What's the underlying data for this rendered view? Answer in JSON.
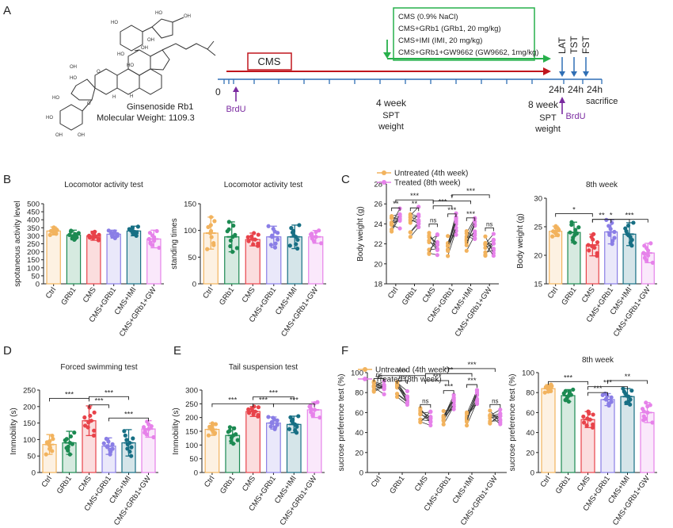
{
  "colors": {
    "Ctrl": "#f2b35e",
    "GRb1": "#1c8a52",
    "CMS": "#e8434a",
    "CMS+GRb1": "#8a7ee6",
    "CMS+IMI": "#176f84",
    "CMS+GRb1+GW": "#e682ea",
    "red_arrow": "#c0161e",
    "green_arrow": "#27b04b",
    "blue_axis": "#2f6fb5",
    "purple": "#7a2aa0"
  },
  "panel_A": {
    "letter": "A",
    "compound_name": "Ginsenoside Rb1",
    "molecular_weight": "Molecular Weight: 1109.3",
    "cms_box_label": "CMS",
    "treatment_lines": [
      "CMS (0.9% NaCl)",
      "CMS+GRb1 (GRb1, 20 mg/kg)",
      "CMS+IMI (IMI, 20 mg/kg)",
      "CMS+GRb1+GW9662 (GW9662, 1mg/kg)"
    ],
    "timeline": {
      "zero": "0",
      "brdu_1": "BrdU",
      "week4": "4 week",
      "spt_1": "SPT",
      "weight_1": "weight",
      "week8": "8 week",
      "spt_2": "SPT",
      "weight_2": "weight",
      "brdu_2": "BrdU",
      "h24_1": "24h",
      "h24_2": "24h",
      "h24_3": "24h",
      "sacrifice": "sacrifice",
      "tests": [
        "LAT",
        "TST",
        "FST"
      ]
    }
  },
  "panel_letters": {
    "B": "B",
    "C": "C",
    "D": "D",
    "E": "E",
    "F": "F"
  },
  "chart_data": [
    {
      "id": "B1",
      "type": "bar",
      "title": "Locomotor activity test",
      "ylabel": "spotaneous activity level",
      "ylim": [
        0,
        500
      ],
      "yticks": [
        "0",
        "50",
        "100",
        "150",
        "200",
        "250",
        "300",
        "350",
        "400",
        "450",
        "500"
      ],
      "categories": [
        "Ctrl",
        "GRb1",
        "CMS",
        "CMS+GRb1",
        "CMS+IMI",
        "CMS+GRb1+GW"
      ],
      "values": [
        330,
        305,
        300,
        310,
        330,
        280
      ],
      "errors": [
        25,
        30,
        28,
        25,
        30,
        55
      ],
      "scatter_offsets": [
        -50,
        -35,
        -20,
        -10,
        0,
        10,
        20,
        35,
        45,
        -25
      ],
      "significance": []
    },
    {
      "id": "B2",
      "type": "bar",
      "title": "Locomotor activity test",
      "ylabel": "standing times",
      "ylim": [
        0,
        150
      ],
      "yticks": [
        "0",
        "50",
        "100",
        "150"
      ],
      "categories": [
        "Ctrl",
        "GRb1",
        "CMS",
        "CMS+GRb1",
        "CMS+IMI",
        "CMS+GRb1+GW"
      ],
      "values": [
        95,
        88,
        83,
        88,
        88,
        88
      ],
      "errors": [
        30,
        28,
        12,
        20,
        22,
        12
      ],
      "scatter_offsets": [
        -40,
        -25,
        -10,
        0,
        15,
        30,
        -30,
        20,
        40,
        5
      ],
      "significance": []
    },
    {
      "id": "C1",
      "type": "paired-scatter",
      "title": "",
      "ylabel": "Body weight (g)",
      "ylim": [
        18,
        28
      ],
      "yticks": [
        "18",
        "20",
        "22",
        "24",
        "26",
        "28"
      ],
      "legend": [
        "Untreated (4th week)",
        "Treated (8th week)"
      ],
      "categories": [
        "Ctrl",
        "GRb1",
        "CMS",
        "CMS+GRb1",
        "CMS+IMI",
        "CMS+GRb1+GW"
      ],
      "untreated_mean": [
        24.0,
        23.8,
        22.0,
        21.8,
        22.5,
        21.7
      ],
      "treated_mean": [
        24.7,
        24.6,
        21.9,
        23.9,
        23.6,
        21.8
      ],
      "spread": 1.2,
      "significance": [
        {
          "from": 0,
          "to": 0,
          "label": "**",
          "level": 25.6
        },
        {
          "from": 1,
          "to": 1,
          "label": "**",
          "level": 25.6
        },
        {
          "from": 2,
          "to": 2,
          "label": "ns",
          "level": 24.0
        },
        {
          "from": 3,
          "to": 3,
          "label": "***",
          "level": 25.0
        },
        {
          "from": 4,
          "to": 4,
          "label": "***",
          "level": 24.6
        },
        {
          "from": 5,
          "to": 5,
          "label": "ns",
          "level": 23.6
        },
        {
          "from": 0,
          "to": 2,
          "label": "***",
          "level": 26.4
        },
        {
          "from": 2,
          "to": 3,
          "label": "***",
          "level": 25.8
        },
        {
          "from": 2,
          "to": 4,
          "label": "*",
          "level": 26.3
        },
        {
          "from": 3,
          "to": 5,
          "label": "***",
          "level": 26.9
        }
      ]
    },
    {
      "id": "C2",
      "type": "bar",
      "title": "8th week",
      "ylabel": "Body weight (g)",
      "ylim": [
        15,
        30
      ],
      "yticks": [
        "15",
        "20",
        "25",
        "30"
      ],
      "categories": [
        "Ctrl",
        "GRb1",
        "CMS",
        "CMS+GRb1",
        "CMS+IMI",
        "CMS+GRb1+GW"
      ],
      "values": [
        24.2,
        24.0,
        21.8,
        24.1,
        23.7,
        20.4
      ],
      "errors": [
        0.9,
        1.8,
        1.9,
        2.1,
        2.0,
        1.7
      ],
      "scatter_offsets": [
        -2.0,
        -1.5,
        -1.0,
        -0.5,
        0,
        0.5,
        1.0,
        1.5,
        2.0,
        -0.2
      ],
      "significance": [
        {
          "from": 0,
          "to": 2,
          "label": "*",
          "level": 27.3
        },
        {
          "from": 2,
          "to": 3,
          "label": "**",
          "level": 26.3
        },
        {
          "from": 2,
          "to": 4,
          "label": "*",
          "level": 26.3
        },
        {
          "from": 3,
          "to": 5,
          "label": "***",
          "level": 26.3
        }
      ]
    },
    {
      "id": "D",
      "type": "bar",
      "title": "Forced swimming test",
      "ylabel": "Immobility (s)",
      "ylim": [
        0,
        250
      ],
      "yticks": [
        "0",
        "50",
        "100",
        "150",
        "200",
        "250"
      ],
      "categories": [
        "Ctrl",
        "GRb1",
        "CMS",
        "CMS+GRb1",
        "CMS+IMI",
        "CMS+GRb1+GW"
      ],
      "values": [
        85,
        90,
        157,
        80,
        90,
        132
      ],
      "errors": [
        30,
        35,
        45,
        25,
        40,
        25
      ],
      "scatter_offsets": [
        -45,
        -30,
        -15,
        0,
        10,
        25,
        40,
        -20,
        15,
        -5
      ],
      "significance": [
        {
          "from": 0,
          "to": 2,
          "label": "***",
          "level": 225
        },
        {
          "from": 2,
          "to": 3,
          "label": "***",
          "level": 205
        },
        {
          "from": 2,
          "to": 4,
          "label": "***",
          "level": 230
        },
        {
          "from": 3,
          "to": 5,
          "label": "***",
          "level": 165
        }
      ]
    },
    {
      "id": "E",
      "type": "bar",
      "title": "Tail suspension test",
      "ylabel": "Immobility (s)",
      "ylim": [
        0,
        300
      ],
      "yticks": [
        "0",
        "50",
        "100",
        "150",
        "200",
        "250",
        "300"
      ],
      "categories": [
        "Ctrl",
        "GRb1",
        "CMS",
        "CMS+GRb1",
        "CMS+IMI",
        "CMS+GRb1+GW"
      ],
      "values": [
        157,
        135,
        222,
        180,
        175,
        228
      ],
      "errors": [
        22,
        30,
        18,
        22,
        30,
        28
      ],
      "scatter_offsets": [
        -35,
        -25,
        -10,
        0,
        15,
        30,
        -20,
        20,
        35,
        5
      ],
      "significance": [
        {
          "from": 0,
          "to": 2,
          "label": "***",
          "level": 250
        },
        {
          "from": 2,
          "to": 3,
          "label": "***",
          "level": 250
        },
        {
          "from": 2,
          "to": 4,
          "label": "***",
          "level": 275
        },
        {
          "from": 3,
          "to": 5,
          "label": "***",
          "level": 250
        }
      ]
    },
    {
      "id": "F1",
      "type": "paired-scatter",
      "title": "",
      "ylabel": "sucrose preference test (%)",
      "ylim": [
        0,
        100
      ],
      "yticks": [
        "0",
        "20",
        "40",
        "60",
        "80",
        "100"
      ],
      "legend": [
        "Untreated (4th week)",
        "Treated (8th week)"
      ],
      "categories": [
        "Ctrl",
        "GRb1",
        "CMS",
        "CMS+GRb1",
        "CMS+IMI",
        "CMS+GRb1+GW"
      ],
      "untreated_mean": [
        86,
        83,
        57,
        55,
        55,
        55
      ],
      "treated_mean": [
        86,
        74,
        54,
        70,
        76,
        55
      ],
      "spread": 8,
      "significance": [
        {
          "from": 0,
          "to": 0,
          "label": "ns",
          "level": 94
        },
        {
          "from": 1,
          "to": 1,
          "label": "ns",
          "level": 92
        },
        {
          "from": 2,
          "to": 2,
          "label": "ns",
          "level": 68
        },
        {
          "from": 3,
          "to": 3,
          "label": "***",
          "level": 82
        },
        {
          "from": 4,
          "to": 4,
          "label": "***",
          "level": 88
        },
        {
          "from": 5,
          "to": 5,
          "label": "ns",
          "level": 68
        },
        {
          "from": 0,
          "to": 2,
          "label": "***",
          "level": 97
        },
        {
          "from": 2,
          "to": 3,
          "label": "***",
          "level": 92
        },
        {
          "from": 2,
          "to": 4,
          "label": "***",
          "level": 99
        },
        {
          "from": 3,
          "to": 5,
          "label": "***",
          "level": 104
        }
      ]
    },
    {
      "id": "F2",
      "type": "bar",
      "title": "8th week",
      "ylabel": "sucrose preference test (%)",
      "ylim": [
        0,
        100
      ],
      "yticks": [
        "0",
        "20",
        "40",
        "60",
        "80",
        "100"
      ],
      "categories": [
        "Ctrl",
        "GRb1",
        "CMS",
        "CMS+GRb1",
        "CMS+IMI",
        "CMS+GRb1+GW"
      ],
      "values": [
        84,
        77,
        53,
        73,
        76,
        60
      ],
      "errors": [
        4,
        6,
        8,
        6,
        8,
        10
      ],
      "scatter_offsets": [
        -8,
        -5,
        -3,
        0,
        3,
        5,
        8,
        -6,
        6,
        1
      ],
      "significance": [
        {
          "from": 0,
          "to": 2,
          "label": "***",
          "level": 91
        },
        {
          "from": 2,
          "to": 3,
          "label": "***",
          "level": 80
        },
        {
          "from": 2,
          "to": 4,
          "label": "***",
          "level": 86
        },
        {
          "from": 3,
          "to": 5,
          "label": "**",
          "level": 92
        }
      ]
    }
  ]
}
